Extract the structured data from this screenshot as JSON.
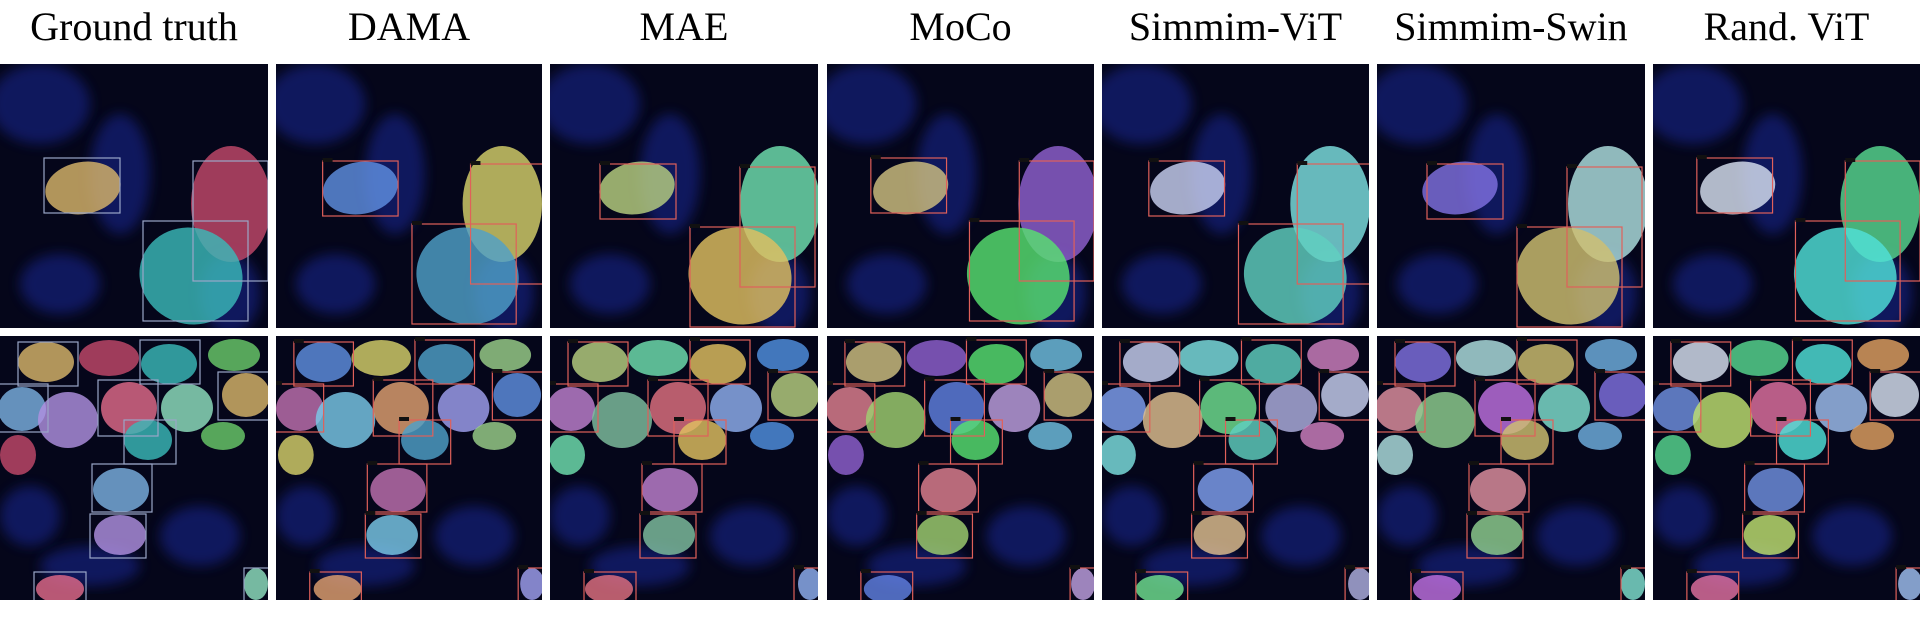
{
  "figure": {
    "columns": [
      {
        "label": "Ground truth",
        "box_color": "#9aa6c8"
      },
      {
        "label": "DAMA",
        "box_color": "#e0605a"
      },
      {
        "label": "MAE",
        "box_color": "#e0605a"
      },
      {
        "label": "MoCo",
        "box_color": "#e0605a"
      },
      {
        "label": "Simmim-ViT",
        "box_color": "#e0605a"
      },
      {
        "label": "Simmim-Swin",
        "box_color": "#e0605a"
      },
      {
        "label": "Rand. ViT",
        "box_color": "#e0605a"
      }
    ],
    "rows": [
      {
        "content": "sparse-cells-crop"
      },
      {
        "content": "dense-cells-crop"
      }
    ],
    "colors": {
      "background": "#05061a",
      "stain_blue": "#1b2fb0"
    }
  }
}
